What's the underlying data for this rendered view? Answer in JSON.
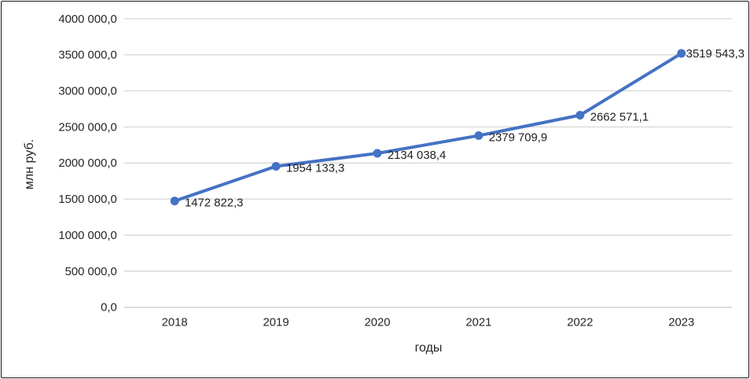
{
  "chart_data": {
    "type": "line",
    "categories": [
      "2018",
      "2019",
      "2020",
      "2021",
      "2022",
      "2023"
    ],
    "values": [
      1472822.3,
      1954133.3,
      2134038.4,
      2379709.9,
      2662571.1,
      3519543.3
    ],
    "data_labels": [
      "1472 822,3",
      "1954 133,3",
      "2134 038,4",
      "2379 709,9",
      "2662 571,1",
      "3519 543,3"
    ],
    "title": "",
    "xlabel": "годы",
    "ylabel": "млн руб.",
    "ylim": [
      0,
      4000000
    ],
    "ytick_step": 500000,
    "ytick_labels": [
      "0,0",
      "500 000,0",
      "1000 000,0",
      "1500 000,0",
      "2000 000,0",
      "2500 000,0",
      "3000 000,0",
      "3500 000,0",
      "4000 000,0"
    ],
    "grid": true,
    "legend": "none",
    "colors": {
      "line": "#4472C4",
      "marker": "#4472C4",
      "gridline": "#D9D9D9",
      "axis_line": "#D2D2D2",
      "text": "#262626",
      "frame_border": "#1a1a1a",
      "background": "#ffffff"
    }
  }
}
